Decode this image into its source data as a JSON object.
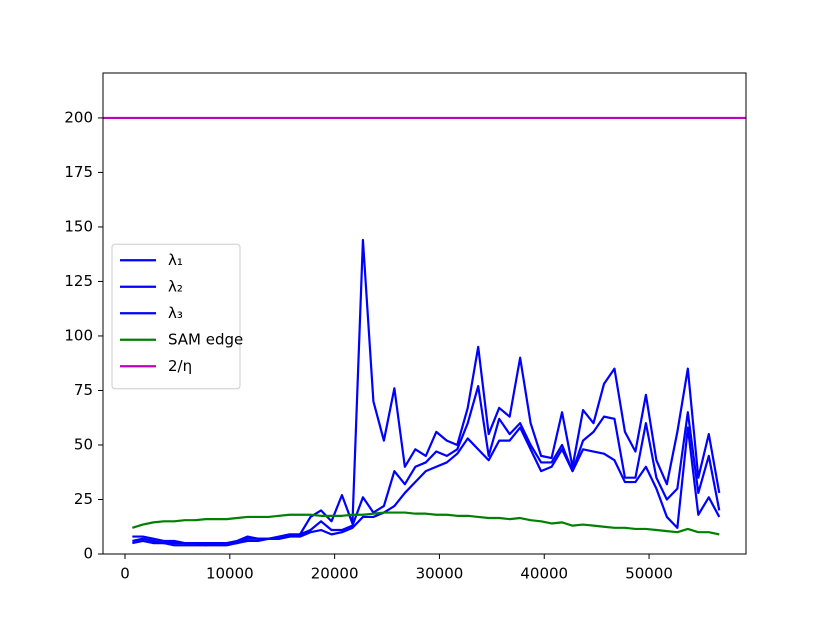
{
  "chart_data": {
    "type": "line",
    "x": [
      700,
      1700,
      2700,
      3700,
      4700,
      5700,
      6700,
      7700,
      8700,
      9700,
      10700,
      11700,
      12700,
      13700,
      14700,
      15700,
      16700,
      17700,
      18700,
      19700,
      20700,
      21700,
      22700,
      23700,
      24700,
      25700,
      26700,
      27700,
      28700,
      29700,
      30700,
      31700,
      32700,
      33700,
      34700,
      35700,
      36700,
      37700,
      38700,
      39700,
      40700,
      41700,
      42700,
      43700,
      44700,
      45700,
      46700,
      47700,
      48700,
      49700,
      50700,
      51700,
      52700,
      53700,
      54700,
      55700,
      56700
    ],
    "series": [
      {
        "name": "λ₁",
        "color": "#0000ff",
        "values": [
          8,
          8,
          7,
          6,
          6,
          5,
          5,
          5,
          5,
          5,
          6,
          8,
          7,
          7,
          8,
          9,
          9,
          17,
          20,
          15,
          27,
          14,
          144,
          70,
          52,
          76,
          40,
          48,
          45,
          56,
          52,
          50,
          67,
          95,
          55,
          67,
          63,
          90,
          60,
          45,
          44,
          65,
          40,
          66,
          60,
          78,
          85,
          56,
          47,
          73,
          43,
          32,
          56,
          85,
          35,
          55,
          28
        ]
      },
      {
        "name": "λ₂",
        "color": "#0000ff",
        "values": [
          6,
          7,
          6,
          5,
          5,
          5,
          5,
          4,
          5,
          5,
          5,
          7,
          7,
          7,
          7,
          8,
          9,
          11,
          15,
          11,
          11,
          13,
          26,
          19,
          22,
          38,
          32,
          40,
          42,
          47,
          45,
          48,
          60,
          77,
          45,
          62,
          55,
          60,
          50,
          42,
          42,
          50,
          38,
          52,
          56,
          63,
          62,
          35,
          35,
          60,
          35,
          25,
          30,
          65,
          28,
          45,
          20
        ]
      },
      {
        "name": "λ₃",
        "color": "#0000ff",
        "values": [
          5,
          6,
          5,
          5,
          4,
          4,
          4,
          4,
          4,
          4,
          5,
          6,
          6,
          7,
          7,
          8,
          8,
          10,
          11,
          9,
          10,
          12,
          17,
          17,
          19,
          22,
          28,
          33,
          38,
          40,
          42,
          46,
          53,
          48,
          43,
          52,
          52,
          58,
          48,
          38,
          40,
          48,
          38,
          48,
          47,
          46,
          43,
          33,
          33,
          40,
          30,
          17,
          12,
          58,
          18,
          26,
          17
        ]
      },
      {
        "name": "SAM edge",
        "color": "#008000",
        "values": [
          12,
          13.5,
          14.5,
          15,
          15,
          15.5,
          15.5,
          16,
          16,
          16,
          16.5,
          17,
          17,
          17,
          17.5,
          18,
          18,
          18,
          17.5,
          17.5,
          17.5,
          18,
          18,
          18.5,
          19,
          19,
          19,
          18.5,
          18.5,
          18,
          18,
          17.5,
          17.5,
          17,
          16.5,
          16.5,
          16,
          16.5,
          15.5,
          15,
          14,
          14.5,
          13,
          13.5,
          13,
          12.5,
          12,
          12,
          11.5,
          11.5,
          11,
          10.5,
          10,
          11.5,
          10,
          10,
          9
        ]
      }
    ],
    "reference_lines": [
      {
        "name": "2/η",
        "color": "#bf00bf",
        "y": 200
      }
    ],
    "xlim": [
      -2100,
      59250
    ],
    "ylim": [
      0,
      220.6
    ],
    "xticks": [
      0,
      10000,
      20000,
      30000,
      40000,
      50000
    ],
    "yticks": [
      0,
      25,
      50,
      75,
      100,
      125,
      150,
      175,
      200
    ],
    "legend": "center left"
  }
}
